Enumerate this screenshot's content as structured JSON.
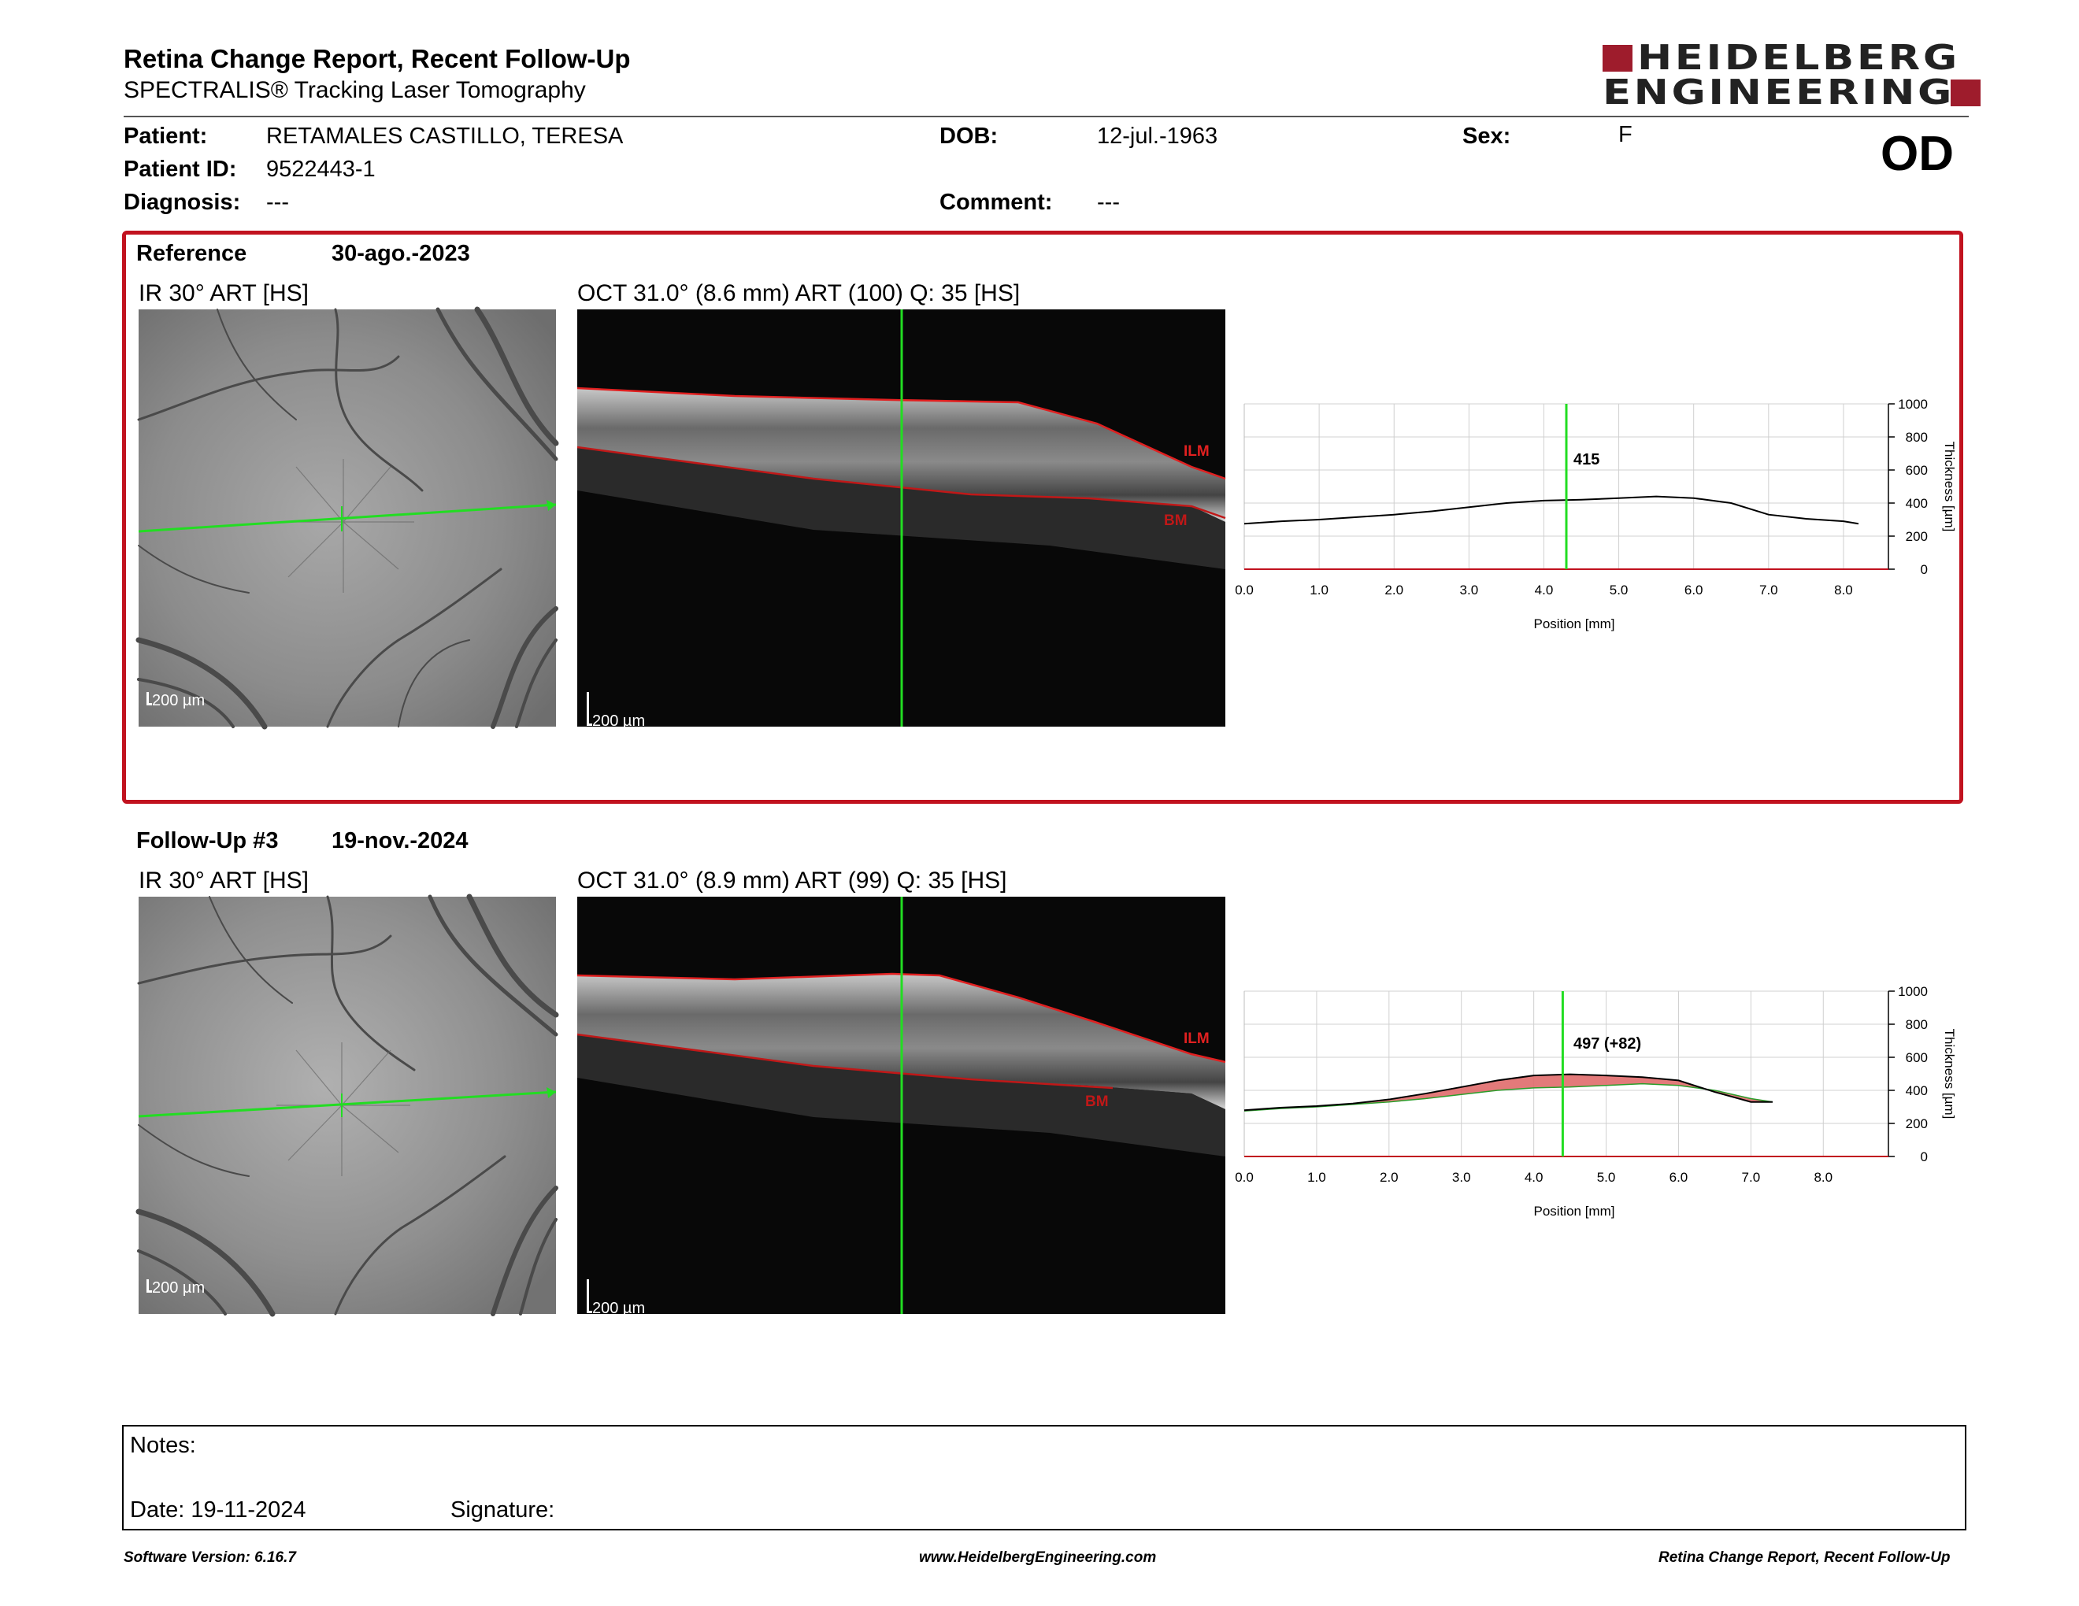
{
  "header": {
    "title": "Retina Change Report, Recent Follow-Up",
    "subtitle": "SPECTRALIS® Tracking Laser Tomography",
    "logo_line1": "HEIDELBERG",
    "logo_line2": "ENGINEERING"
  },
  "patient": {
    "patient_label": "Patient:",
    "patient_value": "RETAMALES CASTILLO, TERESA",
    "id_label": "Patient ID:",
    "id_value": "9522443-1",
    "diagnosis_label": "Diagnosis:",
    "diagnosis_value": "---",
    "dob_label": "DOB:",
    "dob_value": "12-jul.-1963",
    "comment_label": "Comment:",
    "comment_value": "---",
    "sex_label": "Sex:",
    "sex_value": "F",
    "eye": "OD"
  },
  "reference": {
    "label": "Reference",
    "date": "30-ago.-2023",
    "ir_caption": "IR 30° ART [HS]",
    "oct_caption": "OCT 31.0° (8.6 mm) ART (100) Q: 35 [HS]",
    "scale_label": "200 µm",
    "ilm_label": "ILM",
    "bm_label": "BM",
    "marker_value": "415"
  },
  "followup": {
    "label": "Follow-Up #3",
    "date": "19-nov.-2024",
    "ir_caption": "IR 30° ART [HS]",
    "oct_caption": "OCT 31.0° (8.9 mm) ART (99) Q: 35 [HS]",
    "scale_label": "200 µm",
    "ilm_label": "ILM",
    "bm_label": "BM",
    "marker_value": "497 (+82)"
  },
  "chart_data": [
    {
      "type": "line",
      "ylabel": "Thickness [µm]",
      "xlabel": "Position [mm]",
      "xlim": [
        0,
        8.6
      ],
      "ylim": [
        0,
        1000
      ],
      "xticks": [
        "0.0",
        "1.0",
        "2.0",
        "3.0",
        "4.0",
        "5.0",
        "6.0",
        "7.0",
        "8.0"
      ],
      "yticks": [
        "0",
        "200",
        "400",
        "600",
        "800",
        "1000"
      ],
      "marker_x": 4.3,
      "series": [
        {
          "x": [
            0,
            0.5,
            1,
            1.5,
            2,
            2.5,
            3,
            3.5,
            4,
            4.5,
            5,
            5.5,
            6,
            6.5,
            7,
            7.5,
            8,
            8.2
          ],
          "values": [
            275,
            290,
            300,
            315,
            330,
            350,
            375,
            400,
            415,
            420,
            430,
            440,
            430,
            400,
            330,
            305,
            290,
            275
          ]
        }
      ]
    },
    {
      "type": "area",
      "ylabel": "Thickness [µm]",
      "xlabel": "Position [mm]",
      "xlim": [
        0,
        8.9
      ],
      "ylim": [
        0,
        1000
      ],
      "xticks": [
        "0.0",
        "1.0",
        "2.0",
        "3.0",
        "4.0",
        "5.0",
        "6.0",
        "7.0",
        "8.0"
      ],
      "yticks": [
        "0",
        "200",
        "400",
        "600",
        "800",
        "1000"
      ],
      "marker_x": 4.4,
      "reference_series": {
        "x": [
          0,
          0.5,
          1,
          1.5,
          2,
          2.5,
          3,
          3.5,
          4,
          4.5,
          5,
          5.5,
          6,
          6.5,
          7,
          7.3
        ],
        "values": [
          275,
          290,
          300,
          315,
          330,
          350,
          375,
          400,
          415,
          420,
          430,
          440,
          430,
          400,
          350,
          330
        ]
      },
      "followup_series": {
        "x": [
          0,
          0.5,
          1,
          1.5,
          2,
          2.5,
          3,
          3.5,
          4,
          4.5,
          5,
          5.5,
          6,
          6.5,
          7,
          7.3
        ],
        "values": [
          280,
          295,
          305,
          320,
          345,
          380,
          420,
          460,
          490,
          497,
          490,
          480,
          460,
          390,
          330,
          330
        ]
      }
    }
  ],
  "notes": {
    "notes_label": "Notes:",
    "date_label": "Date: 19-11-2024",
    "signature_label": "Signature:"
  },
  "footer": {
    "software": "Software Version: 6.16.7",
    "website": "www.HeidelbergEngineering.com",
    "report_name": "Retina Change Report, Recent Follow-Up"
  },
  "colors": {
    "accent_red": "#c1121f",
    "brand_red": "#9e1c2c",
    "scan_line": "#22dd22"
  }
}
